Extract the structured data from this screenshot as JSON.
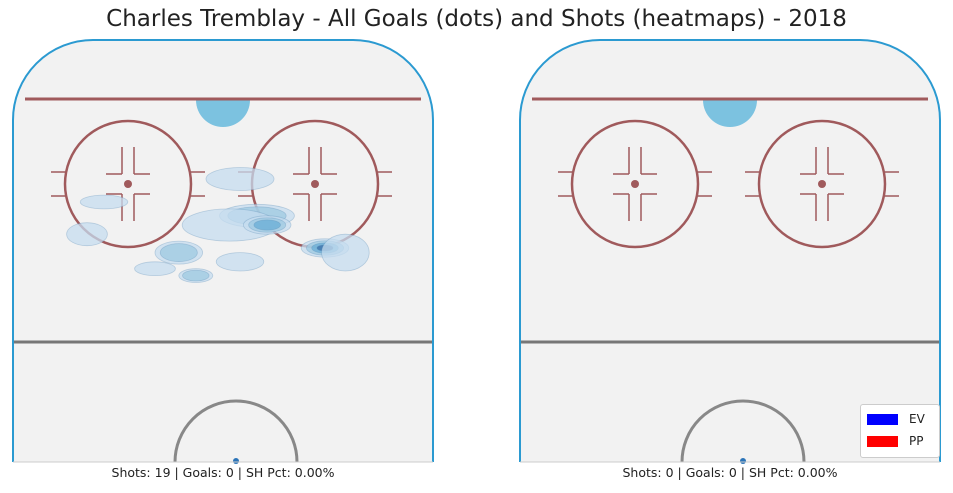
{
  "chart_data": {
    "type": "heatmap",
    "title": "Charles Tremblay - All Goals (dots) and Shots (heatmaps) - 2018",
    "panels": [
      {
        "caption": "Shots: 19 | Goals: 0 | SH Pct: 0.00%",
        "shots": 19,
        "goals": 0,
        "sh_pct": "0.00%",
        "goal_dots": [],
        "density_regions": [
          {
            "cx": 60,
            "cy": 46,
            "rx": 11,
            "ry": 5,
            "level": 1
          },
          {
            "cx": 37,
            "cy": 62,
            "rx": 7,
            "ry": 5,
            "level": 1
          },
          {
            "cx": 15,
            "cy": 40,
            "rx": 7,
            "ry": 3,
            "level": 0
          },
          {
            "cx": 55,
            "cy": 30,
            "rx": 10,
            "ry": 5,
            "level": 0
          },
          {
            "cx": 55,
            "cy": 66,
            "rx": 7,
            "ry": 4,
            "level": 0
          },
          {
            "cx": 30,
            "cy": 69,
            "rx": 6,
            "ry": 3,
            "level": 0
          },
          {
            "cx": 52,
            "cy": 50,
            "rx": 14,
            "ry": 7,
            "level": 0
          },
          {
            "cx": 42,
            "cy": 72,
            "rx": 5,
            "ry": 3,
            "level": 1
          },
          {
            "cx": 80,
            "cy": 60,
            "rx": 7,
            "ry": 4,
            "level": 3
          },
          {
            "cx": 63,
            "cy": 50,
            "rx": 7,
            "ry": 4,
            "level": 2
          },
          {
            "cx": 10,
            "cy": 54,
            "rx": 6,
            "ry": 5,
            "level": 0
          },
          {
            "cx": 86,
            "cy": 62,
            "rx": 7,
            "ry": 8,
            "level": 0
          }
        ]
      },
      {
        "caption": "Shots: 0 | Goals: 0 | SH Pct: 0.00%",
        "shots": 0,
        "goals": 0,
        "sh_pct": "0.00%",
        "goal_dots": [],
        "density_regions": []
      }
    ],
    "legend": {
      "placement": "bottom-right",
      "entries": [
        {
          "label": "EV",
          "color": "#0000ff"
        },
        {
          "label": "PP",
          "color": "#ff0000"
        }
      ]
    }
  },
  "colors": {
    "ice": "#f2f2f2",
    "boards": "#2b9ad1",
    "red_line": "#a05a5c",
    "blue_line": "#777777",
    "crease": "#7cc2e0",
    "heat_levels": [
      "#c6dcef",
      "#9ec9e2",
      "#6aaed6",
      "#3a6fa8"
    ]
  }
}
